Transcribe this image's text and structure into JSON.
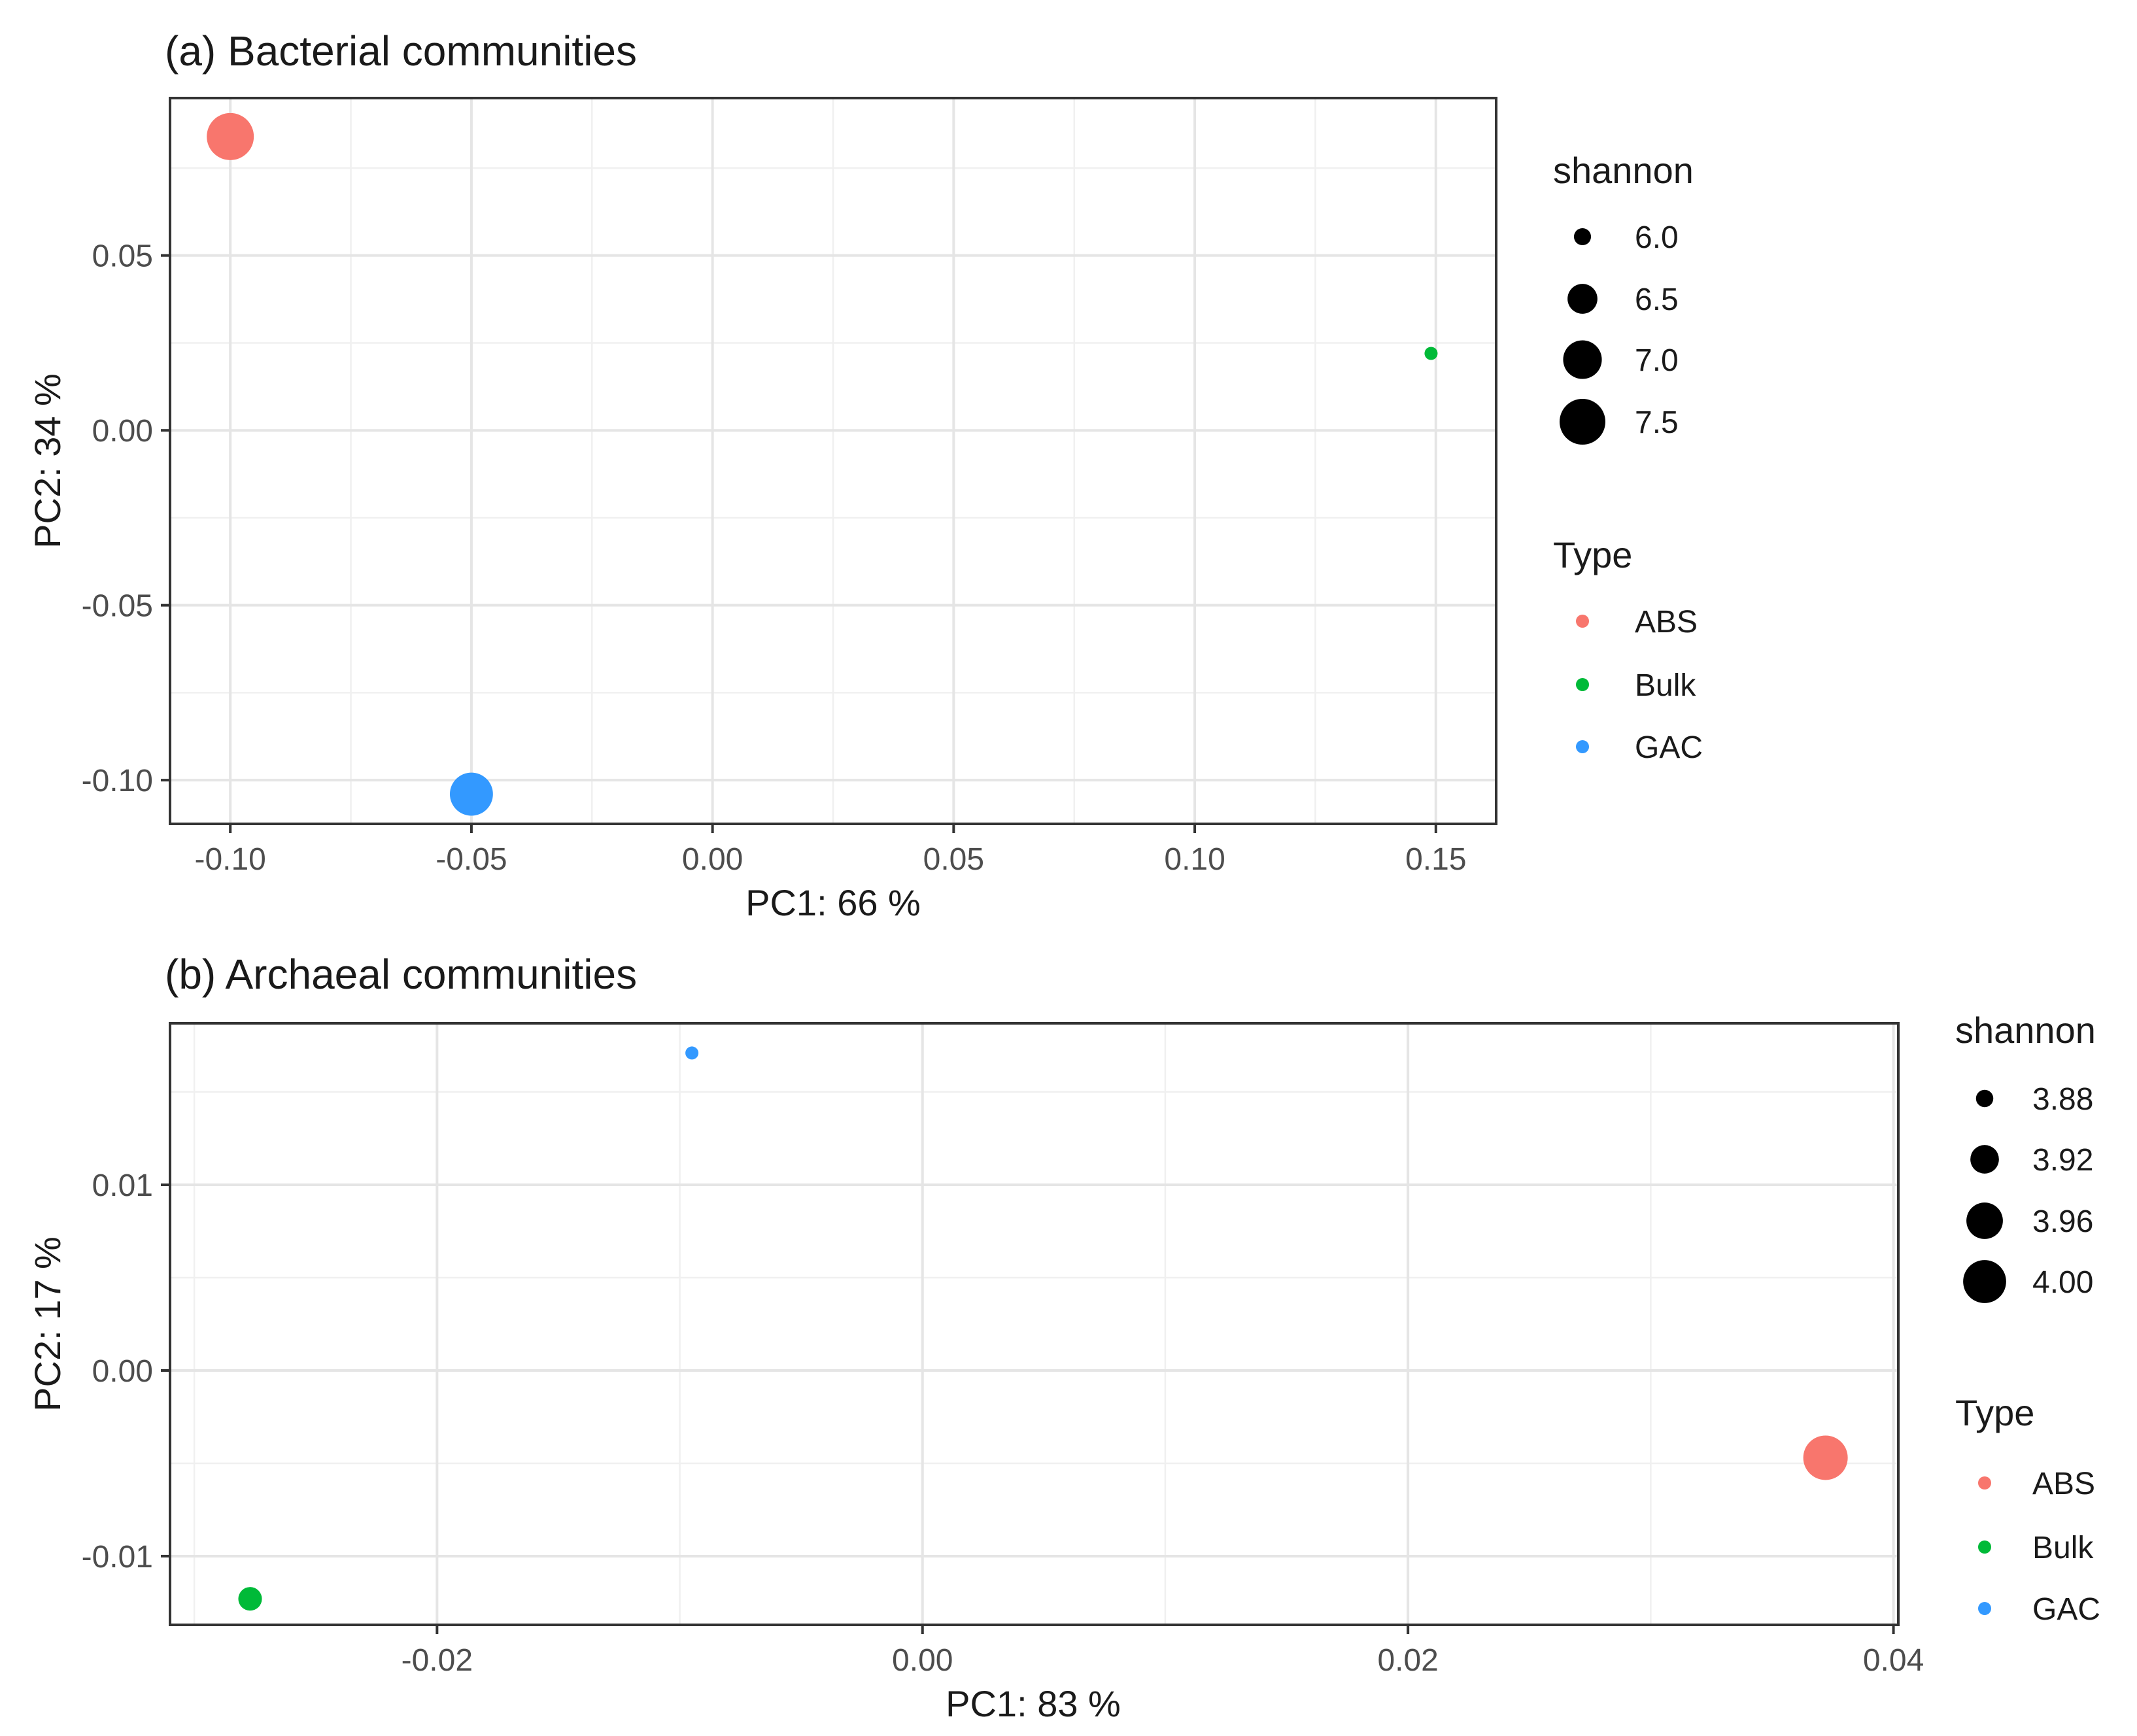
{
  "chart_data": [
    {
      "type": "scatter",
      "title": "(a) Bacterial communities",
      "xlabel": "PC1:  66 %",
      "ylabel": "PC2:  34 %",
      "xlim": [
        -0.1125,
        0.1625
      ],
      "ylim": [
        -0.1125,
        0.095
      ],
      "x_ticks": [
        -0.1,
        -0.05,
        0.0,
        0.05,
        0.1,
        0.15
      ],
      "x_tick_labels": [
        "-0.10",
        "-0.05",
        "0.00",
        "0.05",
        "0.10",
        "0.15"
      ],
      "y_ticks": [
        -0.1,
        -0.05,
        0.0,
        0.05
      ],
      "y_tick_labels": [
        "-0.10",
        "-0.05",
        "0.00",
        "0.05"
      ],
      "grid": true,
      "points": [
        {
          "type": "ABS",
          "x": -0.1,
          "y": 0.084,
          "shannon": 7.6
        },
        {
          "type": "Bulk",
          "x": 0.149,
          "y": 0.022,
          "shannon": 5.9
        },
        {
          "type": "GAC",
          "x": -0.05,
          "y": -0.104,
          "shannon": 7.3
        }
      ],
      "size_legend": {
        "title": "shannon",
        "entries": [
          {
            "label": "6.0",
            "value": 6.0
          },
          {
            "label": "6.5",
            "value": 6.5
          },
          {
            "label": "7.0",
            "value": 7.0
          },
          {
            "label": "7.5",
            "value": 7.5
          }
        ]
      },
      "color_legend": {
        "title": "Type",
        "entries": [
          {
            "label": "ABS",
            "color": "#F8766D"
          },
          {
            "label": "Bulk",
            "color": "#00BA38"
          },
          {
            "label": "GAC",
            "color": "#3399FF"
          }
        ]
      },
      "legend_position": "right"
    },
    {
      "type": "scatter",
      "title": "(b) Archaeal communities",
      "xlabel": "PC1:  83 %",
      "ylabel": "PC2:  17 %",
      "xlim": [
        -0.031,
        0.0402
      ],
      "ylim": [
        -0.0137,
        0.0187
      ],
      "x_ticks": [
        -0.02,
        0.0,
        0.02,
        0.04
      ],
      "x_tick_labels": [
        "-0.02",
        "0.00",
        "0.02",
        "0.04"
      ],
      "y_ticks": [
        -0.01,
        0.0,
        0.01
      ],
      "y_tick_labels": [
        "-0.01",
        "0.00",
        "0.01"
      ],
      "grid": true,
      "points": [
        {
          "type": "ABS",
          "x": 0.0372,
          "y": -0.0047,
          "shannon": 4.01
        },
        {
          "type": "Bulk",
          "x": -0.0277,
          "y": -0.0123,
          "shannon": 3.9
        },
        {
          "type": "GAC",
          "x": -0.0095,
          "y": 0.0171,
          "shannon": 3.87
        }
      ],
      "size_legend": {
        "title": "shannon",
        "entries": [
          {
            "label": "3.88",
            "value": 3.88
          },
          {
            "label": "3.92",
            "value": 3.92
          },
          {
            "label": "3.96",
            "value": 3.96
          },
          {
            "label": "4.00",
            "value": 4.0
          }
        ]
      },
      "color_legend": {
        "title": "Type",
        "entries": [
          {
            "label": "ABS",
            "color": "#F8766D"
          },
          {
            "label": "Bulk",
            "color": "#00BA38"
          },
          {
            "label": "GAC",
            "color": "#3399FF"
          }
        ]
      },
      "legend_position": "right"
    }
  ]
}
